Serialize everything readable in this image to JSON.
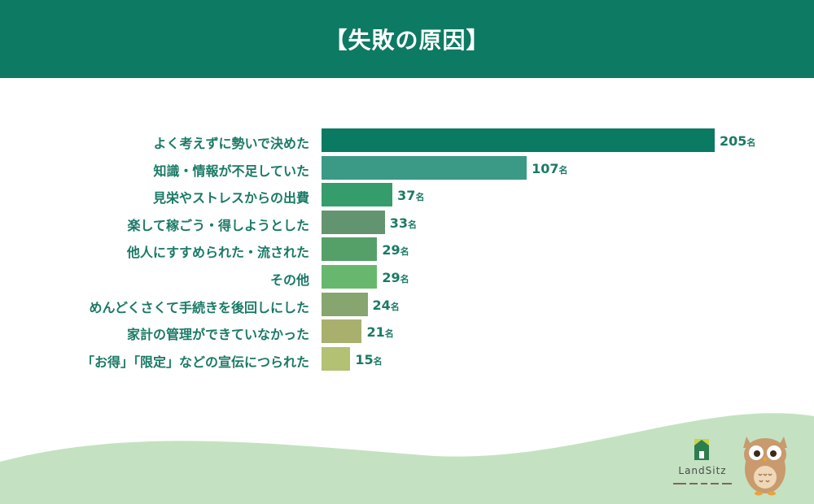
{
  "header": {
    "title": "【失敗の原因】"
  },
  "chart_data": {
    "type": "bar",
    "orientation": "horizontal",
    "title": "【失敗の原因】",
    "unit": "名",
    "categories": [
      "よく考えずに勢いで決めた",
      "知識・情報が不足していた",
      "見栄やストレスからの出費",
      "楽して稼ごう・得しようとした",
      "他人にすすめられた・流された",
      "その他",
      "めんどくさくて手続きを後回しにした",
      "家計の管理ができていなかった",
      "「お得」「限定」などの宣伝につられた"
    ],
    "values": [
      205,
      107,
      37,
      33,
      29,
      29,
      24,
      21,
      15
    ],
    "bar_colors": [
      "#0a7a62",
      "#3a9a86",
      "#359d6b",
      "#62946f",
      "#55a069",
      "#67b86e",
      "#87a56f",
      "#a9b06e",
      "#b2c173"
    ],
    "grid": false,
    "legend": "none"
  },
  "brand": {
    "name": "LandSitz"
  },
  "colors": {
    "header": "#0d7a63",
    "label": "#1a7a66",
    "wave": "#c4e2c1"
  }
}
